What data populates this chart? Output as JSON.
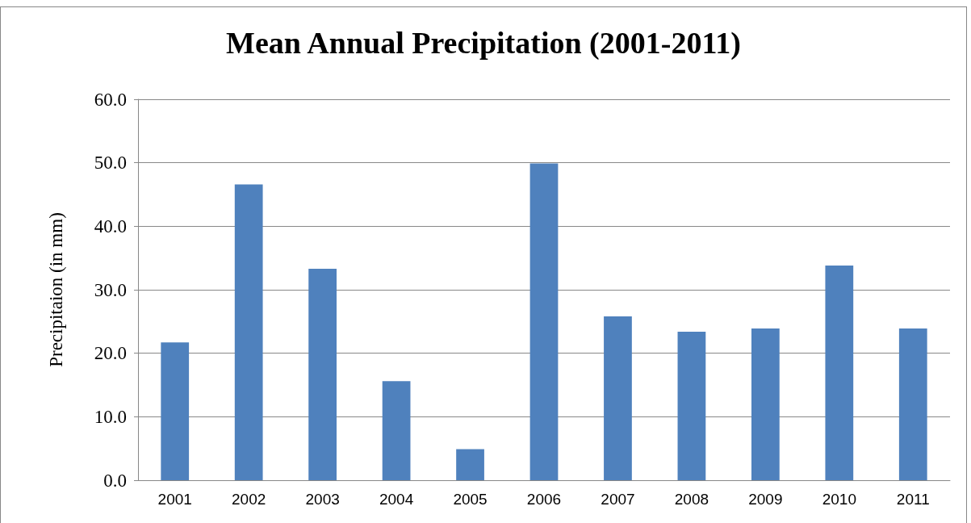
{
  "chart_data": {
    "type": "bar",
    "title": "Mean Annual Precipitation (2001-2011)",
    "ylabel": "Precipitaion (in mm)",
    "categories": [
      "2001",
      "2002",
      "2003",
      "2004",
      "2005",
      "2006",
      "2007",
      "2008",
      "2009",
      "2010",
      "2011"
    ],
    "values": [
      21.7,
      46.6,
      33.3,
      15.6,
      4.9,
      49.9,
      25.8,
      23.4,
      23.9,
      33.8,
      23.9
    ],
    "color": "#4f81bd",
    "ylim": [
      0,
      60
    ],
    "yticks": [
      {
        "value": 0,
        "label": "0.0"
      },
      {
        "value": 10,
        "label": "10.0"
      },
      {
        "value": 20,
        "label": "20.0"
      },
      {
        "value": 30,
        "label": "30.0"
      },
      {
        "value": 40,
        "label": "40.0"
      },
      {
        "value": 50,
        "label": "50.0"
      },
      {
        "value": 60,
        "label": "60.0"
      }
    ],
    "grid": "y"
  }
}
